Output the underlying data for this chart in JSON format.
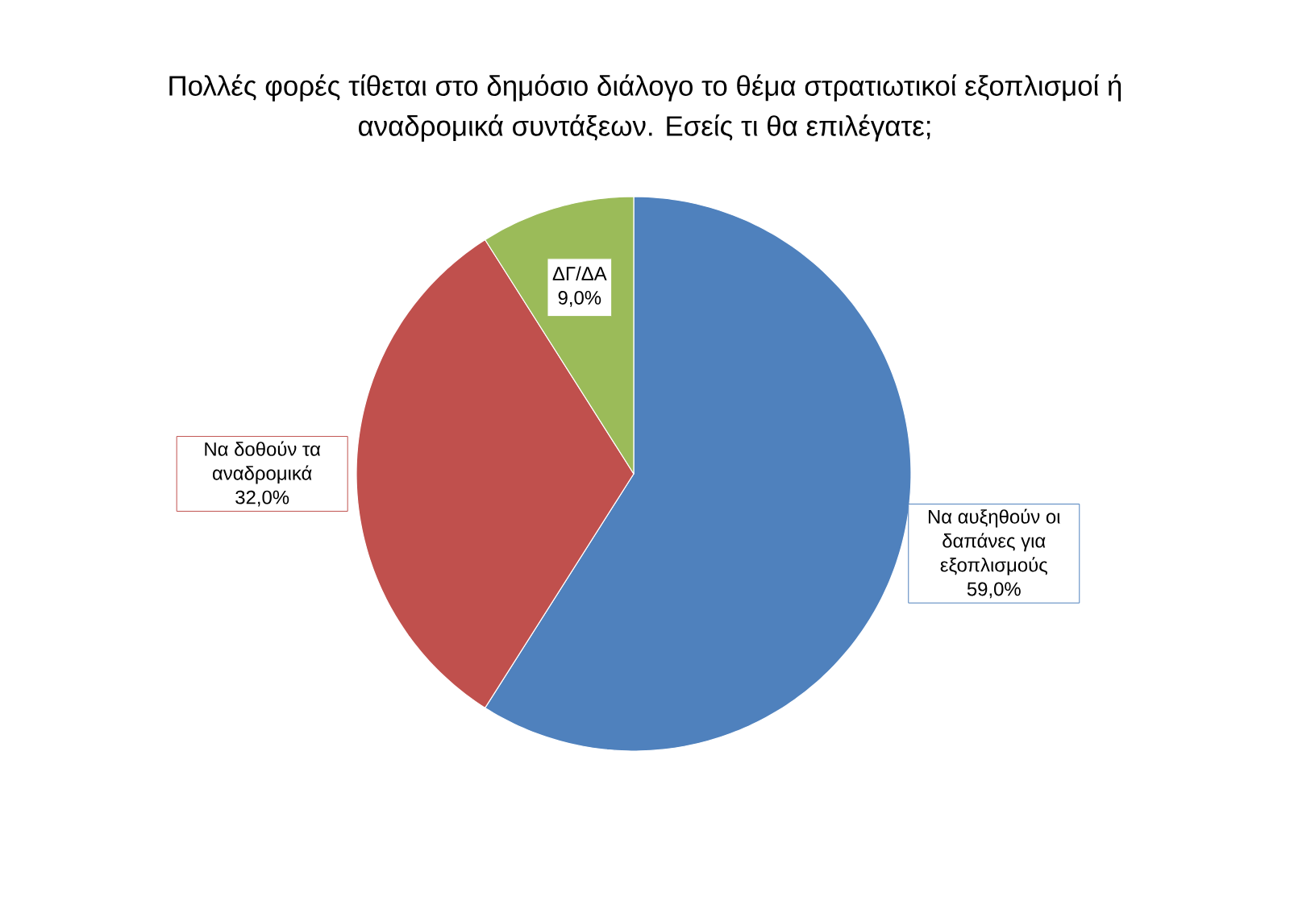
{
  "chart_data": {
    "type": "pie",
    "title": "Πολλές φορές τίθεται στο δημόσιο διάλογο το θέμα στρατιωτικοί εξοπλισμοί ή αναδρομικά συντάξεων. Εσείς  τι θα επιλέγατε;",
    "categories": [
      "Να αυξηθούν οι δαπάνες για εξοπλισμούς",
      "Να δοθούν τα αναδρομικά",
      "ΔΓ/ΔΑ"
    ],
    "values": [
      59,
      32,
      9
    ],
    "colors": [
      "#4f81bd",
      "#c0504d",
      "#9bbb59"
    ],
    "value_labels": [
      "59,0%",
      "32,0%",
      "9,0%"
    ]
  }
}
